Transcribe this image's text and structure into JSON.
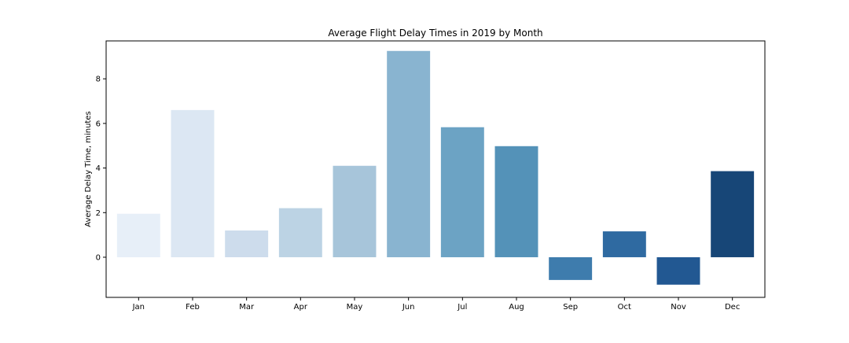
{
  "chart_data": {
    "type": "bar",
    "title": "Average Flight Delay Times in 2019 by Month",
    "xlabel": "",
    "ylabel": "Average Delay Time, minutes",
    "categories": [
      "Jan",
      "Feb",
      "Mar",
      "Apr",
      "May",
      "Jun",
      "Jul",
      "Aug",
      "Sep",
      "Oct",
      "Nov",
      "Dec"
    ],
    "values": [
      1.95,
      6.6,
      1.2,
      2.2,
      4.1,
      9.25,
      5.83,
      4.98,
      -1.02,
      1.16,
      -1.23,
      3.86
    ],
    "colors": [
      "#e7eff8",
      "#dce7f3",
      "#cddcec",
      "#bcd3e4",
      "#a7c5da",
      "#89b4d0",
      "#6ca3c4",
      "#5492b8",
      "#3e7cad",
      "#2f6aa1",
      "#225892",
      "#174677"
    ],
    "yticks": [
      0,
      2,
      4,
      6,
      8
    ],
    "ylim": [
      -1.8,
      9.7
    ],
    "grid": false,
    "legend": "none"
  }
}
